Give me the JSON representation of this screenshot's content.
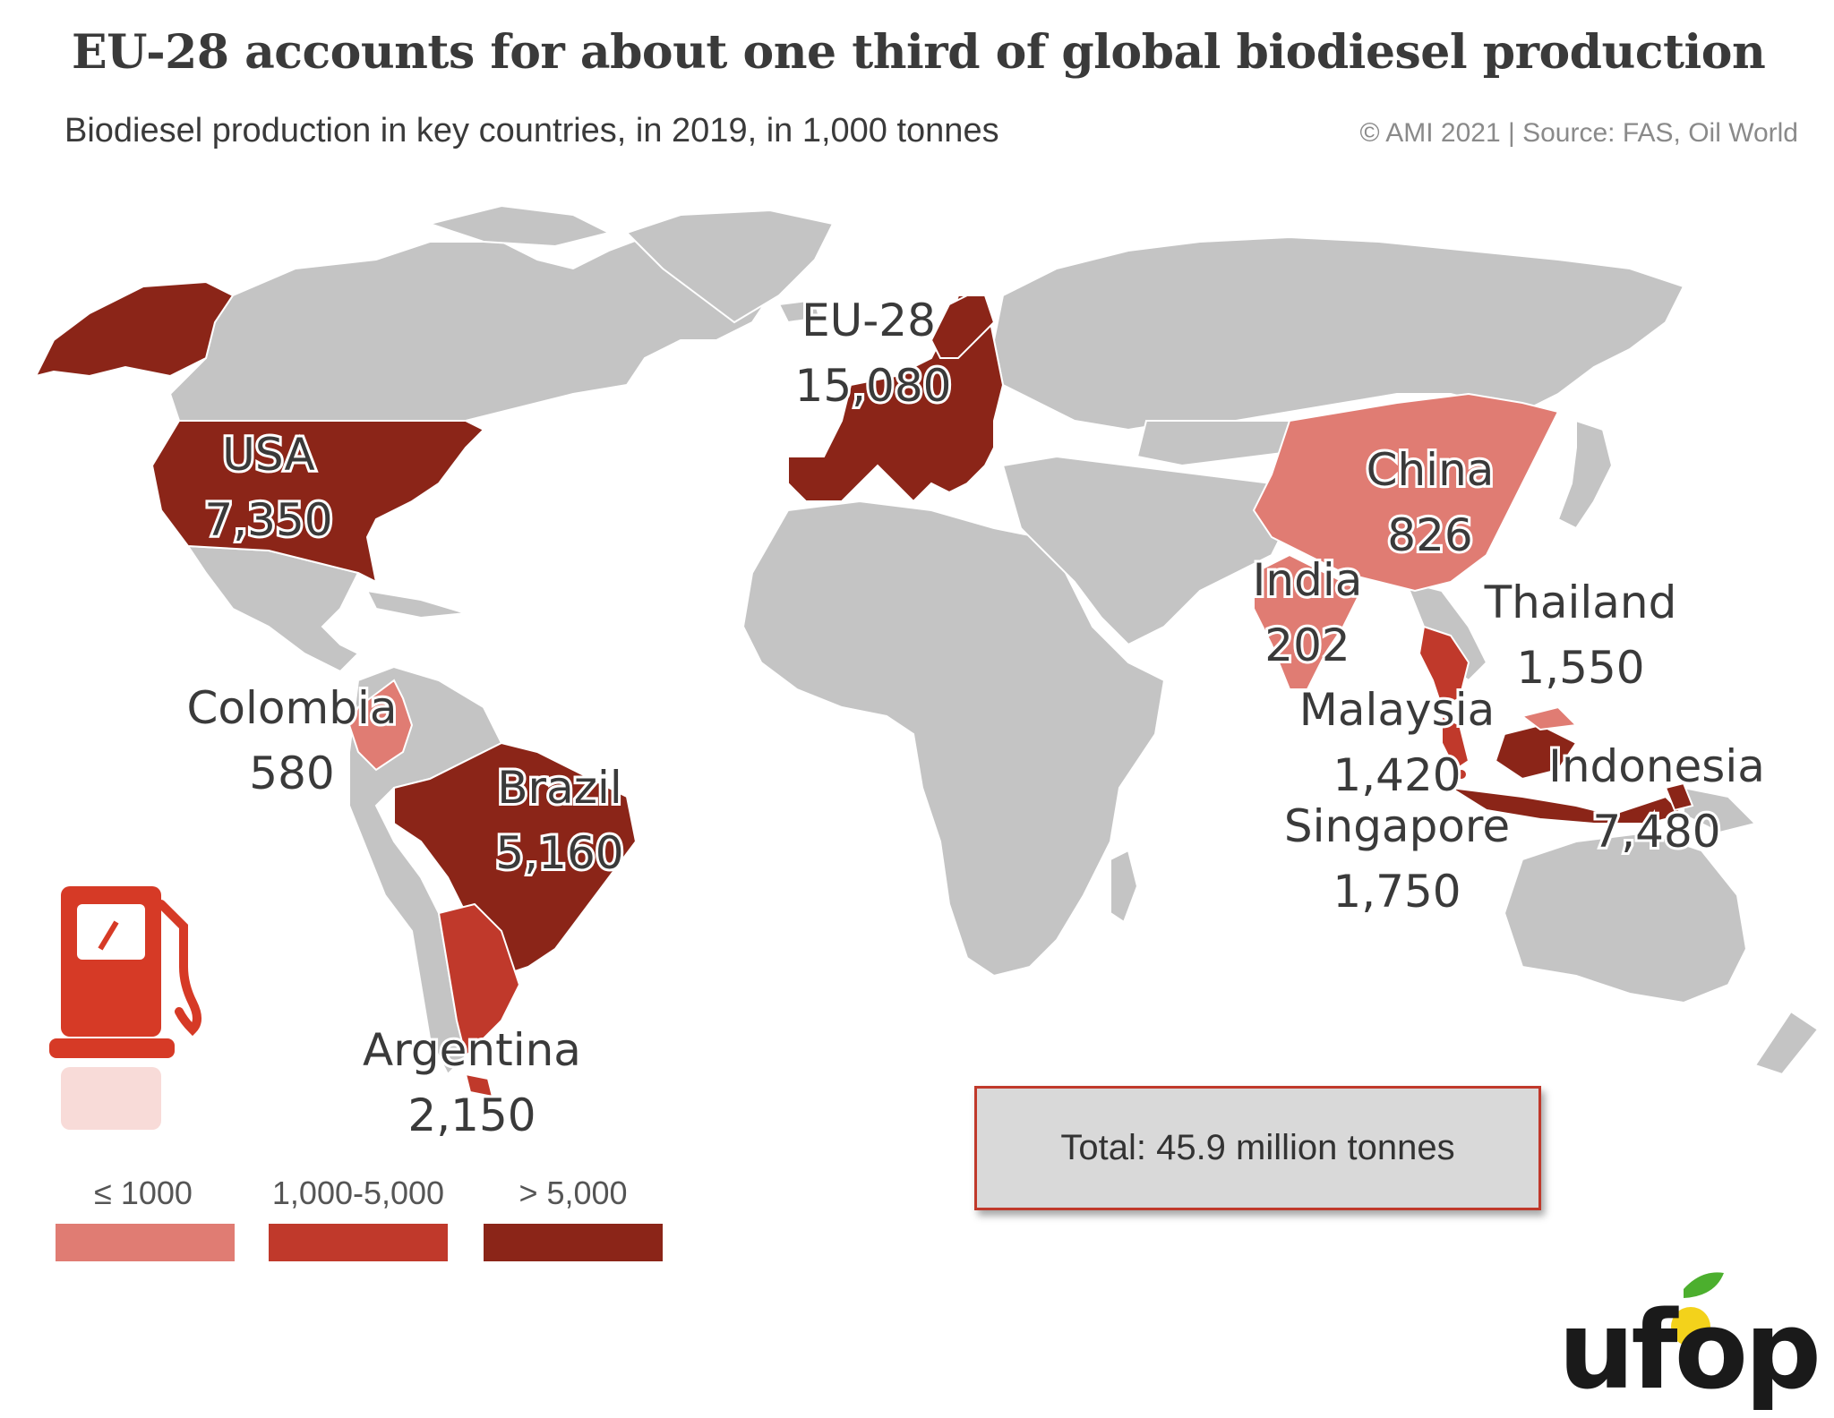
{
  "header": {
    "title": "EU-28 accounts for about one third of global biodiesel production",
    "subtitle": "Biodiesel production in key countries, in 2019, in 1,000 tonnes",
    "source": "© AMI 2021 | Source: FAS, Oil World"
  },
  "colors": {
    "land": "#c4c4c4",
    "low": "#e07c73",
    "mid": "#c0392b",
    "high": "#8b2518",
    "border": "#ffffff",
    "pump": "#d63a26"
  },
  "countries": [
    {
      "name": "USA",
      "value": "7,350",
      "class": "> 5,000"
    },
    {
      "name": "EU-28",
      "value": "15,080",
      "class": "> 5,000"
    },
    {
      "name": "China",
      "value": "826",
      "class": "≤ 1000"
    },
    {
      "name": "India",
      "value": "202",
      "class": "≤ 1000"
    },
    {
      "name": "Thailand",
      "value": "1,550",
      "class": "1,000-5,000"
    },
    {
      "name": "Malaysia",
      "value": "1,420",
      "class": "1,000-5,000"
    },
    {
      "name": "Singapore",
      "value": "1,750",
      "class": "1,000-5,000"
    },
    {
      "name": "Indonesia",
      "value": "7,480",
      "class": "> 5,000"
    },
    {
      "name": "Colombia",
      "value": "580",
      "class": "≤ 1000"
    },
    {
      "name": "Brazil",
      "value": "5,160",
      "class": "> 5,000"
    },
    {
      "name": "Argentina",
      "value": "2,150",
      "class": "1,000-5,000"
    }
  ],
  "legend": [
    {
      "label": "≤ 1000",
      "color": "#e07c73"
    },
    {
      "label": "1,000-5,000",
      "color": "#c0392b"
    },
    {
      "label": "> 5,000",
      "color": "#8b2518"
    }
  ],
  "total": "Total: 45.9 million tonnes",
  "logo": {
    "text": "ufop",
    "icon": "fuel-pump-icon"
  }
}
